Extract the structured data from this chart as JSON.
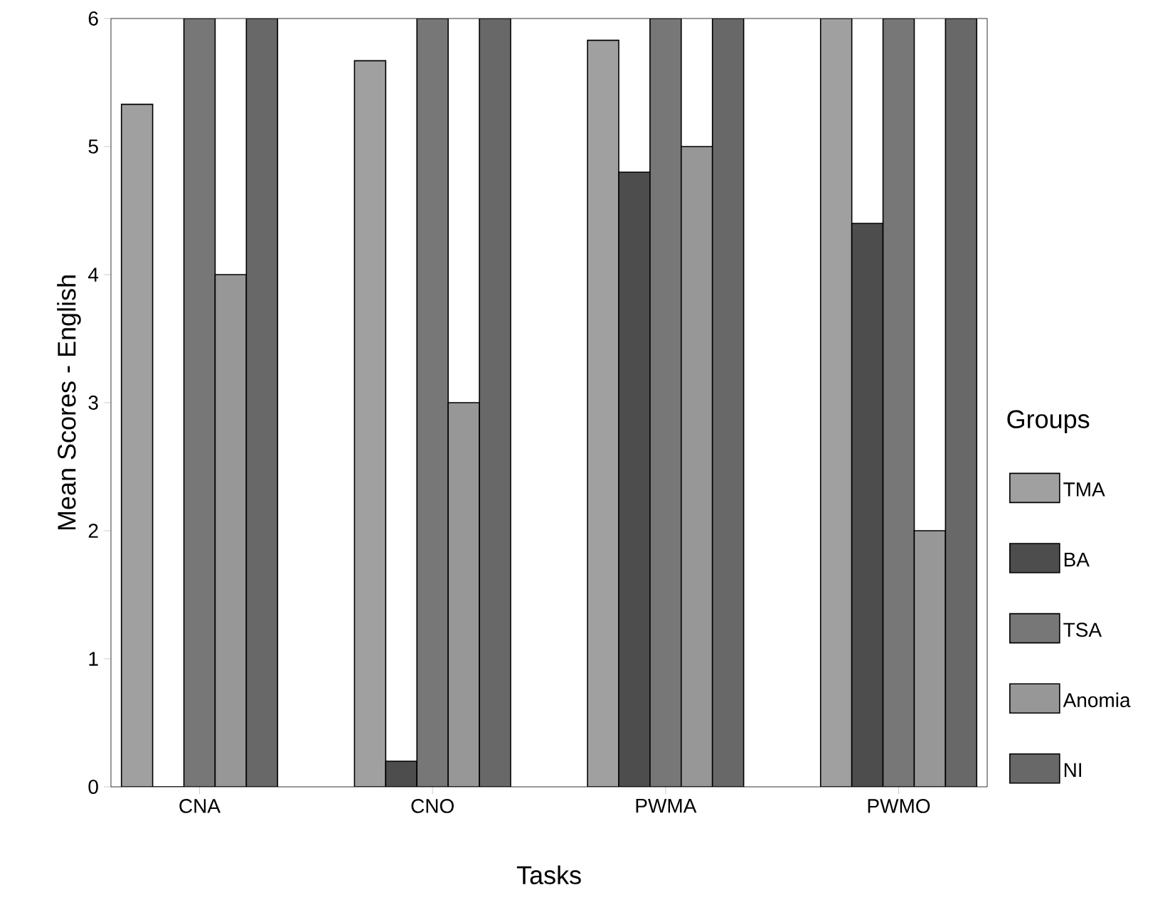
{
  "chart_data": {
    "type": "bar",
    "xlabel": "Tasks",
    "ylabel": "Mean Scores - English",
    "legend_title": "Groups",
    "legend": "right",
    "categories": [
      "CNA",
      "CNO",
      "PWMA",
      "PWMO"
    ],
    "ylim": [
      0,
      6
    ],
    "yticks": [
      0,
      1,
      2,
      3,
      4,
      5,
      6
    ],
    "series": [
      {
        "name": "TMA",
        "color": "#a0a0a0",
        "values": [
          5.33,
          5.67,
          5.83,
          6
        ]
      },
      {
        "name": "BA",
        "color": "#4d4d4d",
        "values": [
          0,
          0.2,
          4.8,
          4.4
        ]
      },
      {
        "name": "TSA",
        "color": "#777777",
        "values": [
          6,
          6,
          6,
          6
        ]
      },
      {
        "name": "Anomia",
        "color": "#979797",
        "values": [
          4,
          3,
          5,
          2
        ]
      },
      {
        "name": "NI",
        "color": "#686868",
        "values": [
          6,
          6,
          6,
          6
        ]
      }
    ]
  }
}
